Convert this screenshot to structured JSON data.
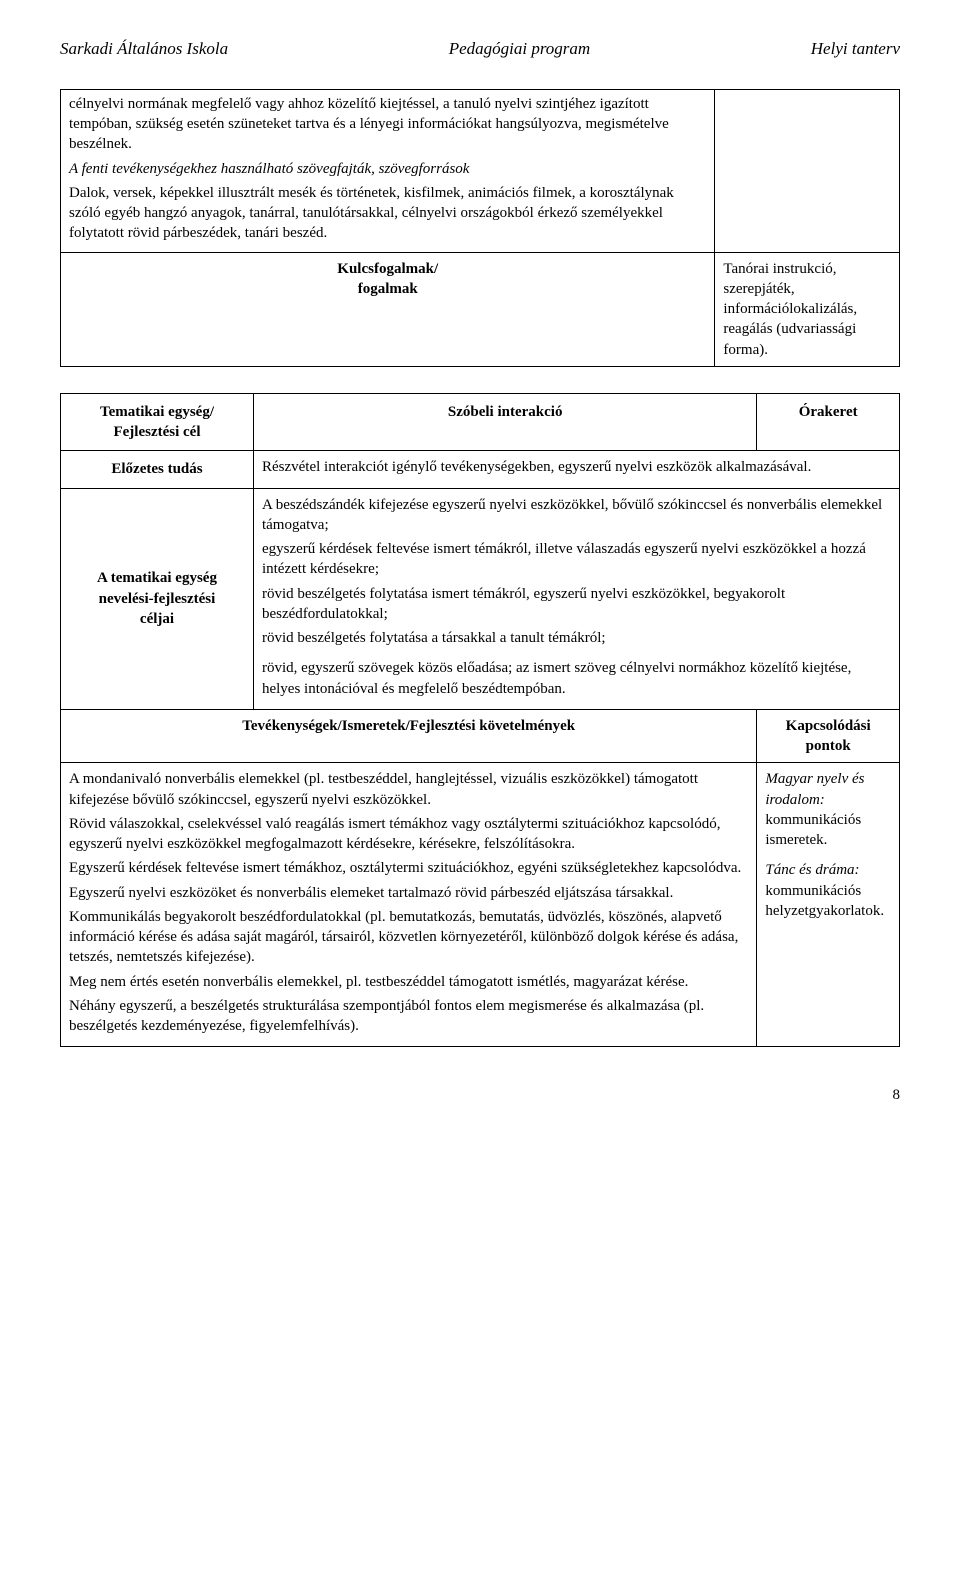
{
  "header": {
    "left": "Sarkadi Általános Iskola",
    "center": "Pedagógiai program",
    "right": "Helyi tanterv"
  },
  "table1": {
    "top_p1": "célnyelvi normának megfelelő vagy ahhoz közelítő kiejtéssel, a tanuló nyelvi szintjéhez igazított tempóban, szükség esetén szüneteket tartva és a lényegi információkat hangsúlyozva, megismételve beszélnek.",
    "top_italic": "A fenti tevékenységekhez használható szövegfajták, szövegforrások",
    "top_p2": "Dalok, versek, képekkel illusztrált mesék és történetek, kisfilmek, animációs filmek, a korosztálynak szóló egyéb hangzó anyagok, tanárral, tanulótársakkal, célnyelvi országokból érkező személyekkel folytatott rövid párbeszédek, tanári beszéd.",
    "kf_label1": "Kulcsfogalmak/",
    "kf_label2": "fogalmak",
    "kf_content": "Tanórai instrukció, szerepjáték, információlokalizálás, reagálás (udvariassági forma)."
  },
  "table2": {
    "r1_left1": "Tematikai egység/",
    "r1_left2": "Fejlesztési cél",
    "r1_mid": "Szóbeli interakció",
    "r1_right": "Órakeret",
    "r2_left": "Előzetes tudás",
    "r2_content": "Részvétel interakciót igénylő tevékenységekben, egyszerű nyelvi eszközök alkalmazásával.",
    "r3_left1": "A tematikai egység",
    "r3_left2": "nevelési-fejlesztési",
    "r3_left3": "céljai",
    "r3_p1": "A beszédszándék kifejezése egyszerű nyelvi eszközökkel, bővülő szókinccsel és nonverbális elemekkel támogatva;",
    "r3_p2": "egyszerű kérdések feltevése ismert témákról, illetve válaszadás egyszerű nyelvi eszközökkel a hozzá intézett kérdésekre;",
    "r3_p3": "rövid beszélgetés folytatása ismert témákról, egyszerű nyelvi eszközökkel, begyakorolt beszédfordulatokkal;",
    "r3_p4": "rövid beszélgetés folytatása a társakkal a tanult témákról;",
    "r3_p5": "rövid, egyszerű szövegek közös előadása; az ismert szöveg célnyelvi normákhoz közelítő kiejtése, helyes intonációval és megfelelő beszédtempóban.",
    "sub_left": "Tevékenységek/Ismeretek/Fejlesztési követelmények",
    "sub_right": "Kapcsolódási pontok",
    "c_left_p1": "A mondanivaló nonverbális elemekkel (pl. testbeszéddel, hanglejtéssel, vizuális eszközökkel) támogatott kifejezése bővülő szókinccsel, egyszerű nyelvi eszközökkel.",
    "c_left_p2": "Rövid válaszokkal, cselekvéssel való reagálás ismert témákhoz vagy osztálytermi szituációkhoz kapcsolódó, egyszerű nyelvi eszközökkel megfogalmazott kérdésekre, kérésekre, felszólításokra.",
    "c_left_p3": "Egyszerű kérdések feltevése ismert témákhoz, osztálytermi szituációkhoz, egyéni szükségletekhez kapcsolódva.",
    "c_left_p4": "Egyszerű nyelvi eszközöket és nonverbális elemeket tartalmazó rövid párbeszéd eljátszása társakkal.",
    "c_left_p5": "Kommunikálás begyakorolt beszédfordulatokkal (pl. bemutatkozás, bemutatás, üdvözlés, köszönés, alapvető információ kérése és adása saját magáról, társairól, közvetlen környezetéről, különböző dolgok kérése és adása, tetszés, nemtetszés kifejezése).",
    "c_left_p6": "Meg nem értés esetén nonverbális elemekkel, pl. testbeszéddel támogatott ismétlés, magyarázat kérése.",
    "c_left_p7": "Néhány egyszerű, a beszélgetés strukturálása szempontjából fontos elem megismerése és alkalmazása (pl. beszélgetés kezdeményezése, figyelemfelhívás).",
    "c_right_p1a": "Magyar nyelv és",
    "c_right_p1b": "irodalom:",
    "c_right_p1c": "kommunikációs",
    "c_right_p1d": "ismeretek.",
    "c_right_p2a": "Tánc és dráma:",
    "c_right_p2b": "kommunikációs",
    "c_right_p2c": "helyzetgyakorlatok."
  },
  "page_number": "8"
}
